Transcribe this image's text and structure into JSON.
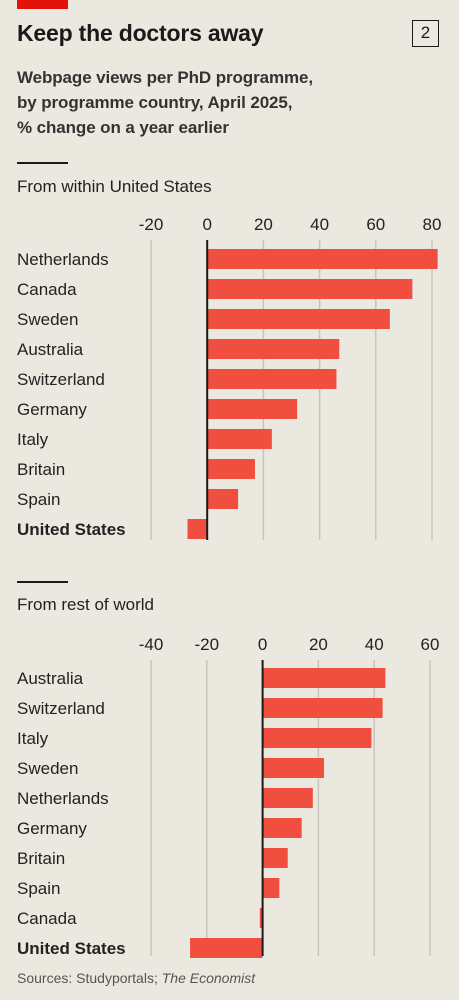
{
  "header": {
    "title": "Keep the doctors away",
    "badge": "2",
    "subtitle": "Webpage views per PhD programme,\nby programme country, April 2025,\n% change on a year earlier"
  },
  "source": {
    "prefix": "Sources: Studyportals; ",
    "publication": "The Economist"
  },
  "colors": {
    "bar": "#f04e3e",
    "grid": "#c9c5bb",
    "axis": "#1a1a1a",
    "background": "#ebe8df"
  },
  "chart_data": [
    {
      "type": "bar",
      "orientation": "horizontal",
      "title": "From within United States",
      "xlim": [
        -20,
        80
      ],
      "ticks": [
        -20,
        0,
        20,
        40,
        60,
        80
      ],
      "categories": [
        "Netherlands",
        "Canada",
        "Sweden",
        "Australia",
        "Switzerland",
        "Germany",
        "Italy",
        "Britain",
        "Spain",
        "United States"
      ],
      "values": [
        82,
        73,
        65,
        47,
        46,
        32,
        23,
        17,
        11,
        -7
      ],
      "highlight": "United States",
      "grid": true
    },
    {
      "type": "bar",
      "orientation": "horizontal",
      "title": "From rest of world",
      "xlim": [
        -40,
        60
      ],
      "ticks": [
        -40,
        -20,
        0,
        20,
        40,
        60
      ],
      "categories": [
        "Australia",
        "Switzerland",
        "Italy",
        "Sweden",
        "Netherlands",
        "Germany",
        "Britain",
        "Spain",
        "Canada",
        "United States"
      ],
      "values": [
        44,
        43,
        39,
        22,
        18,
        14,
        9,
        6,
        -1,
        -26
      ],
      "highlight": "United States",
      "grid": true
    }
  ]
}
